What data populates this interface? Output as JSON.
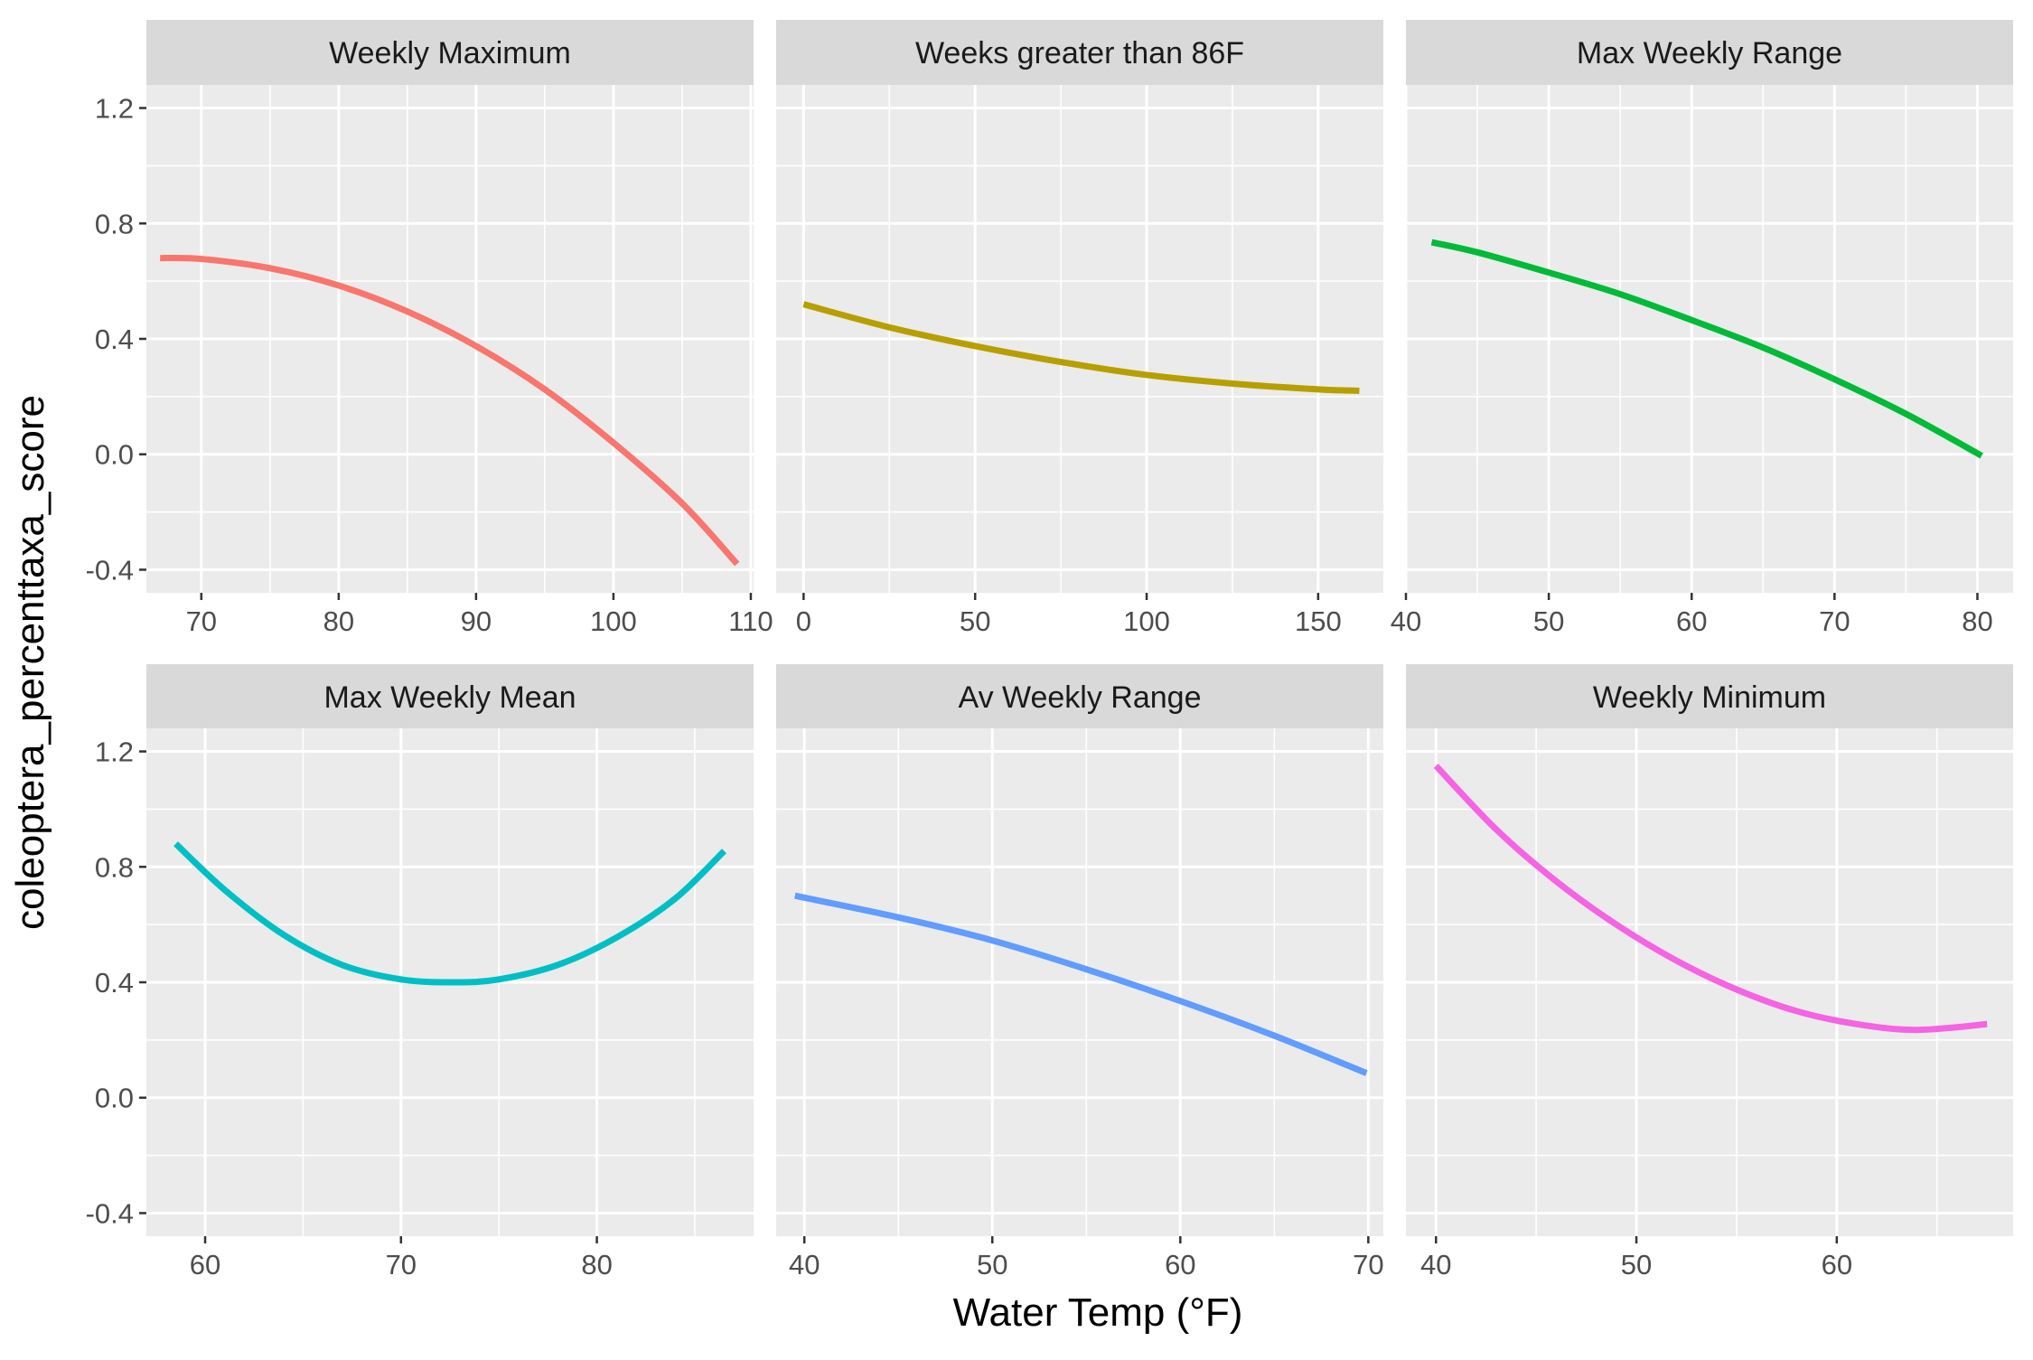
{
  "chart_data": {
    "type": "line",
    "xlabel": "Water Temp (°F)",
    "ylabel": "coleoptera_percenttaxa_score",
    "ylim": [
      -0.48,
      1.28
    ],
    "yticks": [
      -0.4,
      0.0,
      0.4,
      0.8,
      1.2
    ],
    "ytick_labels": [
      "-0.4",
      "0.0",
      "0.4",
      "0.8",
      "1.2"
    ],
    "grid": true,
    "legend": "none",
    "panels": [
      {
        "title": "Weekly Maximum",
        "color": "#F8766D",
        "xlim": [
          66,
          110.2
        ],
        "xticks": [
          70,
          80,
          90,
          100,
          110
        ],
        "xtick_labels": [
          "70",
          "80",
          "90",
          "100",
          "110"
        ],
        "x": [
          67,
          70,
          75,
          80,
          85,
          90,
          95,
          100,
          105,
          109
        ],
        "y": [
          0.68,
          0.677,
          0.645,
          0.585,
          0.495,
          0.375,
          0.225,
          0.04,
          -0.17,
          -0.38
        ]
      },
      {
        "title": "Weeks greater than 86F",
        "color": "#B79F00",
        "xlim": [
          -8,
          169
        ],
        "xticks": [
          0,
          50,
          100,
          150
        ],
        "xtick_labels": [
          "0",
          "50",
          "100",
          "150"
        ],
        "x": [
          0,
          25,
          50,
          75,
          100,
          125,
          150,
          162
        ],
        "y": [
          0.52,
          0.44,
          0.375,
          0.32,
          0.275,
          0.245,
          0.225,
          0.22
        ]
      },
      {
        "title": "Max Weekly Range",
        "color": "#00BA38",
        "xlim": [
          40,
          82.5
        ],
        "xticks": [
          40,
          50,
          60,
          70,
          80
        ],
        "xtick_labels": [
          "40",
          "50",
          "60",
          "70",
          "80"
        ],
        "x": [
          41.8,
          45,
          50,
          55,
          60,
          65,
          70,
          75,
          80.3
        ],
        "y": [
          0.735,
          0.7,
          0.63,
          0.555,
          0.465,
          0.37,
          0.26,
          0.14,
          -0.005
        ]
      },
      {
        "title": "Max Weekly Mean",
        "color": "#00BFC4",
        "xlim": [
          57,
          88
        ],
        "xticks": [
          60,
          70,
          80
        ],
        "xtick_labels": [
          "60",
          "70",
          "80"
        ],
        "x": [
          58.5,
          61,
          64,
          67,
          70,
          72.7,
          75,
          78,
          81,
          84,
          86.5
        ],
        "y": [
          0.88,
          0.72,
          0.565,
          0.46,
          0.41,
          0.4,
          0.41,
          0.46,
          0.555,
          0.69,
          0.855
        ]
      },
      {
        "title": "Av Weekly Range",
        "color": "#619CFF",
        "xlim": [
          38.5,
          70.8
        ],
        "xticks": [
          40,
          50,
          60,
          70
        ],
        "xtick_labels": [
          "40",
          "50",
          "60",
          "70"
        ],
        "x": [
          39.5,
          45,
          50,
          55,
          60,
          65,
          69.9
        ],
        "y": [
          0.7,
          0.625,
          0.545,
          0.445,
          0.335,
          0.215,
          0.085
        ]
      },
      {
        "title": "Weekly Minimum",
        "color": "#F564E3",
        "xlim": [
          38.5,
          68.8
        ],
        "xticks": [
          40,
          50,
          60
        ],
        "xtick_labels": [
          "40",
          "50",
          "60"
        ],
        "x": [
          40,
          43,
          46,
          49,
          52,
          55,
          58,
          61,
          64,
          67.5
        ],
        "y": [
          1.15,
          0.93,
          0.75,
          0.6,
          0.475,
          0.375,
          0.3,
          0.255,
          0.235,
          0.255
        ]
      }
    ]
  }
}
